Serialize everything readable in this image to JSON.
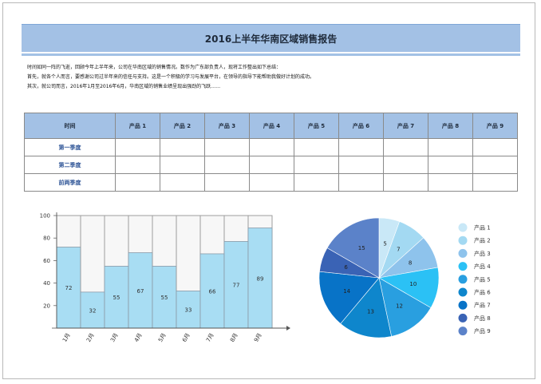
{
  "report": {
    "title": "2016上半年华南区域销售报告",
    "intro": [
      "时间如同一阵的飞逝，回顾今年上半年来，公司在华南区域的销售情况。数作为广东部负责人，现将工作整出如下总结：",
      "首先，就各个人而言，要感谢公司过半年来的信任与支持。这是一个积极的学习与发展平台，在领导的指导下能帮助我做好计划的成功。",
      "其次，就公司而言，2016年1月至2016年6月，华南区域的销售业绩呈现出强劲的飞跃……"
    ]
  },
  "table": {
    "headers": [
      "时间",
      "产品 1",
      "产品 2",
      "产品 3",
      "产品 4",
      "产品 5",
      "产品 6",
      "产品 7",
      "产品 8",
      "产品 9"
    ],
    "rows": [
      {
        "label": "第一季度",
        "cells": [
          "",
          "",
          "",
          "",
          "",
          "",
          "",
          "",
          ""
        ]
      },
      {
        "label": "第二季度",
        "cells": [
          "",
          "",
          "",
          "",
          "",
          "",
          "",
          "",
          ""
        ]
      },
      {
        "label": "前两季度",
        "cells": [
          "",
          "",
          "",
          "",
          "",
          "",
          "",
          "",
          ""
        ]
      }
    ]
  },
  "chart_data": [
    {
      "type": "bar",
      "categories": [
        "1月",
        "2月",
        "3月",
        "4月",
        "5月",
        "6月",
        "7月",
        "8月",
        "9月"
      ],
      "values": [
        72,
        32,
        55,
        67,
        55,
        33,
        66,
        77,
        89
      ],
      "ylim": [
        0,
        100
      ],
      "yticks": [
        20,
        40,
        60,
        80,
        100
      ],
      "bar_color": "#a8ddf3",
      "background_color": "#f7f7f7",
      "grid": false
    },
    {
      "type": "pie",
      "labels": [
        "产品 1",
        "产品 2",
        "产品 3",
        "产品 4",
        "产品 5",
        "产品 6",
        "产品 7",
        "产品 8",
        "产品 9"
      ],
      "values": [
        5,
        7,
        8,
        10,
        12,
        13,
        14,
        6,
        15
      ],
      "colors": [
        "#c9e8f7",
        "#a3d9f2",
        "#8ec3ec",
        "#2bc1f5",
        "#299fe0",
        "#0e86cc",
        "#0873c7",
        "#3a63b5",
        "#5b82c9"
      ],
      "legend_position": "right"
    }
  ]
}
